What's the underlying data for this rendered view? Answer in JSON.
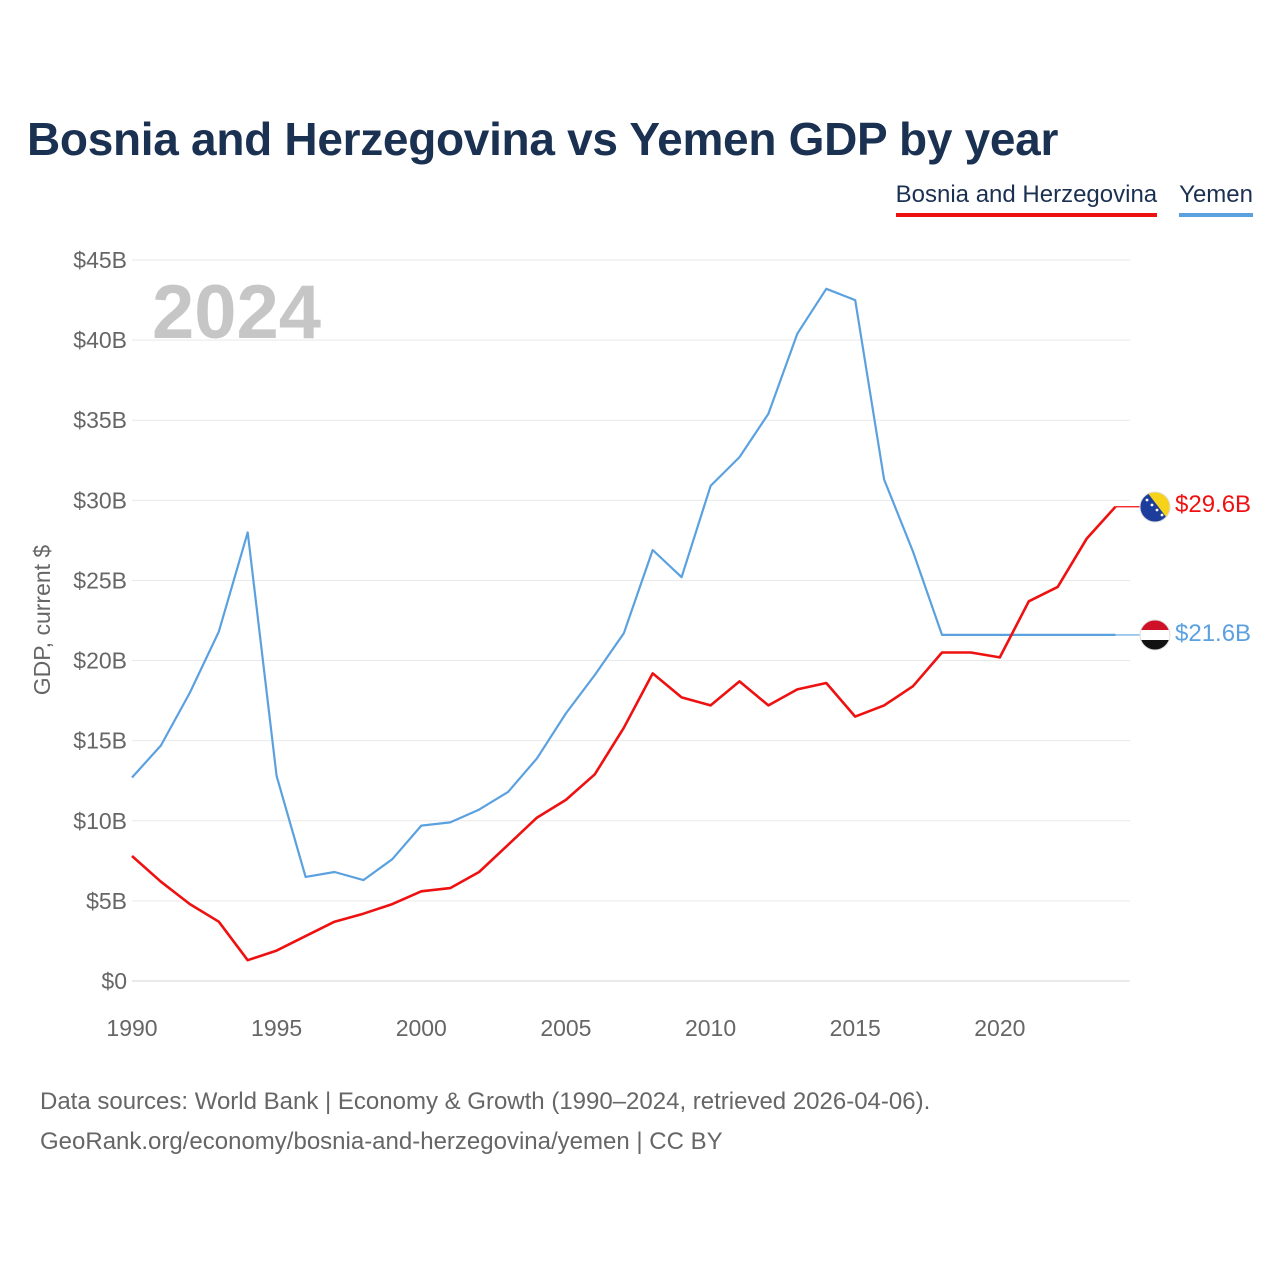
{
  "title": "Bosnia and Herzegovina vs Yemen GDP by year",
  "legend": {
    "bih": "Bosnia and Herzegovina",
    "yemen": "Yemen"
  },
  "source": {
    "line1": "Data sources: World Bank | Economy & Growth (1990–2024, retrieved 2026-04-06).",
    "line2": "GeoRank.org/economy/bosnia-and-herzegovina/yemen | CC BY"
  },
  "chart_data": {
    "type": "line",
    "title": "Bosnia and Herzegovina vs Yemen GDP by year",
    "watermark": "2024",
    "xlabel": "",
    "ylabel": "GDP, current $",
    "xlim": [
      1990,
      2024
    ],
    "ylim": [
      0,
      45
    ],
    "x_ticks": [
      1990,
      1995,
      2000,
      2005,
      2010,
      2015,
      2020
    ],
    "y_ticks": [
      0,
      5,
      10,
      15,
      20,
      25,
      30,
      35,
      40,
      45
    ],
    "y_tick_labels": [
      "$0",
      "$5B",
      "$10B",
      "$15B",
      "$20B",
      "$25B",
      "$30B",
      "$35B",
      "$40B",
      "$45B"
    ],
    "grid": true,
    "series": [
      {
        "name": "Bosnia and Herzegovina",
        "color": "#ee1111",
        "end_label": "$29.6B",
        "x": [
          1990,
          1991,
          1992,
          1993,
          1994,
          1995,
          1996,
          1997,
          1998,
          1999,
          2000,
          2001,
          2002,
          2003,
          2004,
          2005,
          2006,
          2007,
          2008,
          2009,
          2010,
          2011,
          2012,
          2013,
          2014,
          2015,
          2016,
          2017,
          2018,
          2019,
          2020,
          2021,
          2022,
          2023,
          2024
        ],
        "values": [
          7.8,
          6.2,
          4.8,
          3.7,
          1.3,
          1.9,
          2.8,
          3.7,
          4.2,
          4.8,
          5.6,
          5.8,
          6.8,
          8.5,
          10.2,
          11.3,
          12.9,
          15.8,
          19.2,
          17.7,
          17.2,
          18.7,
          17.2,
          18.2,
          18.6,
          16.5,
          17.2,
          18.4,
          20.5,
          20.5,
          20.2,
          23.7,
          24.6,
          27.6,
          29.6
        ]
      },
      {
        "name": "Yemen",
        "color": "#5ba1e0",
        "end_label": "$21.6B",
        "x": [
          1990,
          1991,
          1992,
          1993,
          1994,
          1995,
          1996,
          1997,
          1998,
          1999,
          2000,
          2001,
          2002,
          2003,
          2004,
          2005,
          2006,
          2007,
          2008,
          2009,
          2010,
          2011,
          2012,
          2013,
          2014,
          2015,
          2016,
          2017,
          2018,
          2019,
          2020,
          2021,
          2022,
          2023,
          2024
        ],
        "values": [
          12.7,
          14.7,
          18.0,
          21.8,
          28.0,
          12.8,
          6.5,
          6.8,
          6.3,
          7.6,
          9.7,
          9.9,
          10.7,
          11.8,
          13.9,
          16.7,
          19.1,
          21.7,
          26.9,
          25.2,
          30.9,
          32.7,
          35.4,
          40.4,
          43.2,
          42.5,
          31.3,
          26.8,
          21.6,
          21.6,
          21.6,
          21.6,
          21.6,
          21.6,
          21.6
        ]
      }
    ]
  }
}
